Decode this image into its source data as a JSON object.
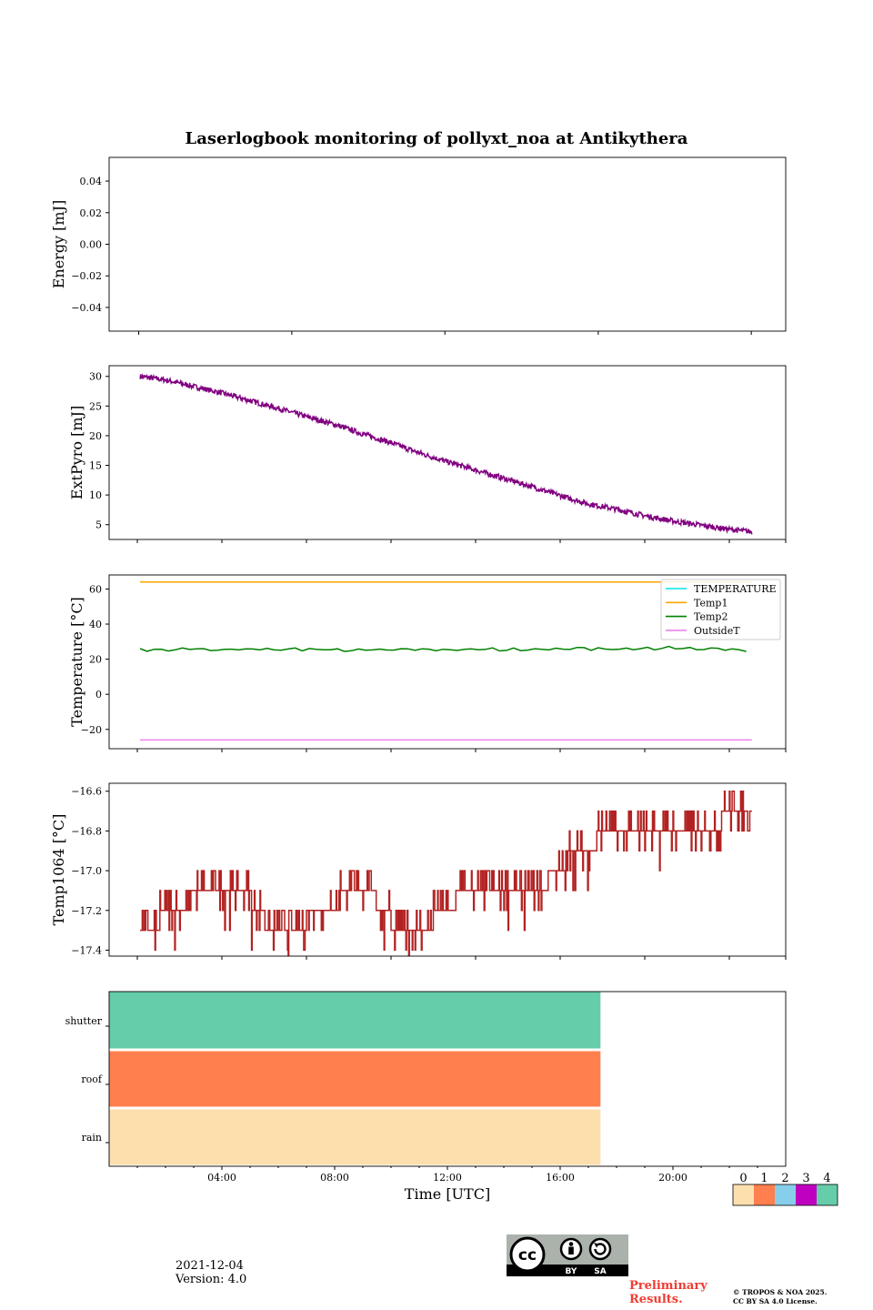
{
  "figure": {
    "title": "Laserlogbook monitoring of pollyxt_noa at Antikythera",
    "date": "2021-12-04",
    "version": "Version: 4.0",
    "preliminary": [
      "Preliminary",
      "Results."
    ],
    "copyright": [
      "© TROPOS & NOA 2025.",
      "CC BY SA 4.0 License."
    ],
    "license_badge": {
      "by": "BY",
      "sa": "SA"
    }
  },
  "chart_data": [
    {
      "type": "line",
      "id": "energy",
      "ylabel": "Energy [mJ]",
      "ylim": [
        -0.055,
        0.055
      ],
      "yticks": [
        -0.04,
        -0.02,
        0.0,
        0.02,
        0.04
      ],
      "ytick_labels": [
        "−0.04",
        "−0.02",
        "0.00",
        "0.02",
        "0.04"
      ],
      "xlim_hours": [
        0,
        24
      ],
      "series": []
    },
    {
      "type": "line",
      "id": "extpyro",
      "ylabel": "ExtPyro [mJ]",
      "ylim": [
        2.5,
        31.8
      ],
      "yticks": [
        5,
        10,
        15,
        20,
        25,
        30
      ],
      "ytick_labels": [
        "5",
        "10",
        "15",
        "20",
        "25",
        "30"
      ],
      "xlim_hours": [
        0,
        24
      ],
      "series": [
        {
          "color": "#800080",
          "x": [
            1.1,
            2,
            3,
            4,
            5,
            6,
            7,
            8,
            9,
            10,
            11,
            12,
            13,
            14,
            15,
            16,
            17,
            18,
            19,
            20,
            21,
            22,
            22.8
          ],
          "y": [
            30,
            29.4,
            28.3,
            27.2,
            25.9,
            24.6,
            23.2,
            21.9,
            20.3,
            18.8,
            17.1,
            15.6,
            14.2,
            12.8,
            11.4,
            9.9,
            8.5,
            7.6,
            6.5,
            5.6,
            4.9,
            4.2,
            3.8
          ]
        }
      ]
    },
    {
      "type": "line",
      "id": "temperature",
      "ylabel": "Temperature [°C]",
      "ylim": [
        -31,
        68
      ],
      "yticks": [
        -20,
        0,
        20,
        40,
        60
      ],
      "ytick_labels": [
        "−20",
        "0",
        "20",
        "40",
        "60"
      ],
      "xlim_hours": [
        0,
        24
      ],
      "legend_position": "top-right",
      "series": [
        {
          "name": "TEMPERATURE",
          "color": "#00e5e5",
          "x": [],
          "y": []
        },
        {
          "name": "Temp1",
          "color": "#ffa500",
          "x": [
            1.1,
            22.8
          ],
          "y": [
            64,
            64
          ]
        },
        {
          "name": "Temp2",
          "color": "#008000",
          "x": [
            1.1,
            3,
            5,
            7,
            9,
            11,
            13,
            15,
            16.5,
            18,
            19.5,
            21,
            22.8
          ],
          "y": [
            25.5,
            25.8,
            25.3,
            25.6,
            25.2,
            25.5,
            25.6,
            25.4,
            26.3,
            25.6,
            26.4,
            26.0,
            25.3
          ]
        },
        {
          "name": "OutsideT",
          "color": "#ee82ee",
          "x": [
            1.1,
            22.8
          ],
          "y": [
            -26,
            -26
          ]
        }
      ]
    },
    {
      "type": "line",
      "id": "temp1064",
      "ylabel": "Temp1064 [°C]",
      "ylim": [
        -17.43,
        -16.56
      ],
      "yticks": [
        -17.4,
        -17.2,
        -17.0,
        -16.8,
        -16.6
      ],
      "ytick_labels": [
        "−17.4",
        "−17.2",
        "−17.0",
        "−16.8",
        "−16.6"
      ],
      "xlim_hours": [
        0,
        24
      ],
      "series": [
        {
          "color": "#b22222",
          "x": [
            1.1,
            1.8,
            2.5,
            3.3,
            4.0,
            4.8,
            5.5,
            6.2,
            7.0,
            7.8,
            8.5,
            9.2,
            10.0,
            10.8,
            11.5,
            12.3,
            13.0,
            13.8,
            14.5,
            15.2,
            16.0,
            16.6,
            17.3,
            18.0,
            18.8,
            19.5,
            20.3,
            21.0,
            21.7,
            22.3,
            22.8
          ],
          "y": [
            -17.3,
            -17.25,
            -17.2,
            -17.1,
            -17.05,
            -17.1,
            -17.25,
            -17.3,
            -17.25,
            -17.2,
            -17.1,
            -17.1,
            -17.25,
            -17.3,
            -17.25,
            -17.15,
            -17.15,
            -17.15,
            -17.15,
            -17.1,
            -17.0,
            -16.9,
            -16.85,
            -16.85,
            -16.8,
            -16.8,
            -16.8,
            -16.85,
            -16.75,
            -16.7,
            -16.7
          ]
        }
      ]
    },
    {
      "type": "heatmap",
      "id": "status",
      "xlabel": "Time [UTC]",
      "xlim_hours": [
        0,
        24
      ],
      "xticks": [
        4,
        8,
        12,
        16,
        20
      ],
      "xtick_labels": [
        "04:00",
        "08:00",
        "12:00",
        "16:00",
        "20:00"
      ],
      "rows": [
        {
          "label": "shutter",
          "value": 4,
          "from_hour": 0,
          "to_hour": 17.43
        },
        {
          "label": "roof",
          "value": 1,
          "from_hour": 0,
          "to_hour": 17.43
        },
        {
          "label": "rain",
          "value": 0,
          "from_hour": 0,
          "to_hour": 17.43
        }
      ],
      "colorbar": {
        "labels": [
          "0",
          "1",
          "2",
          "3",
          "4"
        ],
        "colors": [
          "#fddfae",
          "#ff7f4e",
          "#87ceeb",
          "#c000c0",
          "#66cdaa"
        ]
      }
    }
  ]
}
